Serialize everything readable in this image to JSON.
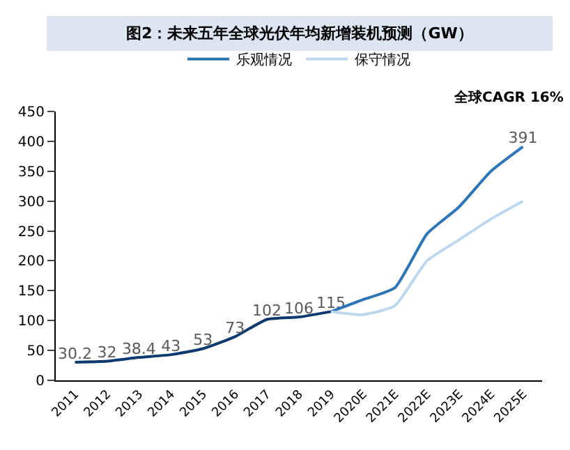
{
  "chart_data": {
    "type": "line",
    "title": "图2：未来五年全球光伏年均新增装机预测（GW）",
    "categories": [
      "2011",
      "2012",
      "2013",
      "2014",
      "2015",
      "2016",
      "2017",
      "2018",
      "2019",
      "2020E",
      "2021E",
      "2022E",
      "2023E",
      "2024E",
      "2025E"
    ],
    "series": [
      {
        "color": "#0d3a6e",
        "values": [
          30.2,
          32,
          38.4,
          43,
          53,
          73,
          102,
          106,
          115,
          null,
          null,
          null,
          null,
          null,
          null
        ],
        "value_labels": [
          "30.2",
          "32",
          "38.4",
          "43",
          "53",
          "73",
          "102",
          "106",
          "115",
          null,
          null,
          null,
          null,
          null,
          null
        ]
      },
      {
        "name": "乐观情况",
        "color": "#2e75b6",
        "values": [
          null,
          null,
          null,
          null,
          null,
          null,
          null,
          null,
          115,
          135,
          155,
          245,
          290,
          350,
          391
        ],
        "value_labels": [
          null,
          null,
          null,
          null,
          null,
          null,
          null,
          null,
          null,
          null,
          null,
          null,
          null,
          null,
          "391"
        ]
      },
      {
        "name": "保守情况",
        "color": "#bdd7ee",
        "values": [
          null,
          null,
          null,
          null,
          null,
          null,
          null,
          null,
          115,
          110,
          125,
          200,
          235,
          270,
          300
        ]
      }
    ],
    "annotations": [
      "全球CAGR 16%"
    ],
    "ylim": [
      0,
      450
    ],
    "yticks": [
      0,
      50,
      100,
      150,
      200,
      250,
      300,
      350,
      400,
      450
    ],
    "legend": "top",
    "marker": "none",
    "line_style": "solid"
  }
}
